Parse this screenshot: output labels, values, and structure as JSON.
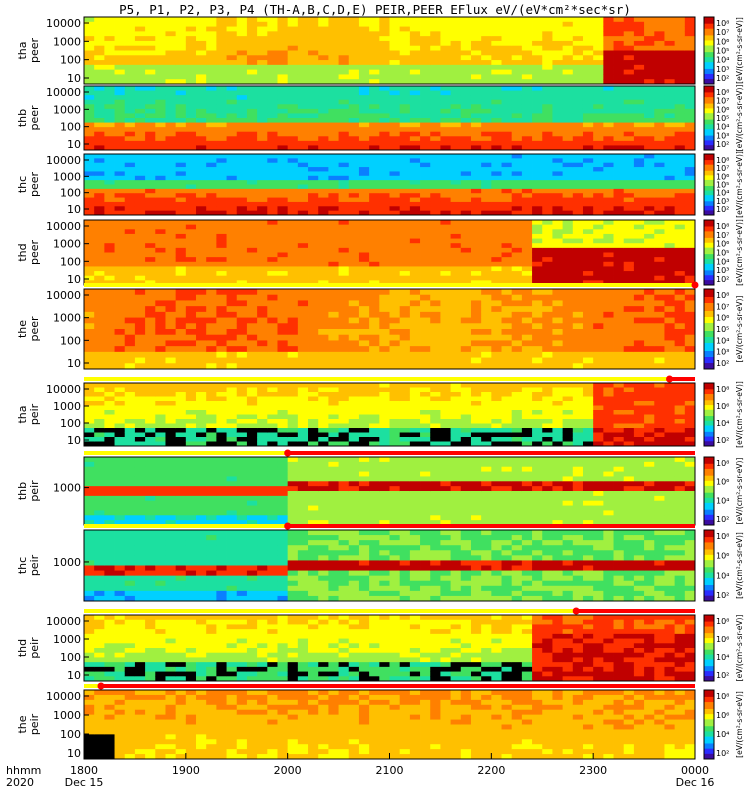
{
  "title": "P5, P1, P2, P3, P4 (TH-A,B,C,D,E) PEIR,PEER EFlux eV/(eV*cm²*sec*sr)",
  "time_label_row1": "hhmm",
  "time_label_row2": "2020",
  "colorbar_unit_label": "[eV/(cm²-s-sr-eV)]",
  "colorbar_ticks_full": [
    "10⁸",
    "10⁷",
    "10⁶",
    "10⁵",
    "10⁴",
    "10³",
    "10²"
  ],
  "colorbar_ticks_even": [
    "10⁸",
    "10⁶",
    "10⁴",
    "10²"
  ],
  "colors": {
    "background": "#ffffff",
    "quality_flag_bar": "#ff0000",
    "quality_flag_ok": "#ffff00"
  },
  "chart_data": {
    "type": "heatmap",
    "x_axis": {
      "ticks": [
        "1800",
        "1900",
        "2000",
        "2100",
        "2200",
        "2300",
        "0000"
      ],
      "date_labels": [
        "Dec 15",
        "",
        "",
        "",
        "",
        "",
        "Dec 16"
      ],
      "range": [
        "2020-12-15 18:00",
        "2020-12-16 00:00"
      ]
    },
    "z_scale": "log",
    "panels": [
      {
        "probe": "tha",
        "species": "peer",
        "ylabel": "tha\npeer",
        "yticks": [
          "10000",
          "1000",
          "100",
          "10"
        ],
        "colorbar": "full",
        "flag_start": null,
        "dominant": "green-orange, red after 2300"
      },
      {
        "probe": "thb",
        "species": "peer",
        "ylabel": "thb\npeer",
        "yticks": [
          "10000",
          "1000",
          "100",
          "10"
        ],
        "colorbar": "full",
        "flag_start": null,
        "dominant": "red-orange low, green high"
      },
      {
        "probe": "thc",
        "species": "peer",
        "ylabel": "thc\npeer",
        "yticks": [
          "10000",
          "1000",
          "100",
          "10"
        ],
        "colorbar": "full",
        "flag_start": null,
        "dominant": "red low, blue high"
      },
      {
        "probe": "thd",
        "species": "peer",
        "ylabel": "thd\npeer",
        "yticks": [
          "10000",
          "1000",
          "100",
          "10"
        ],
        "colorbar": "full",
        "flag_start": null,
        "dominant": "orange, red after 2235"
      },
      {
        "probe": "the",
        "species": "peer",
        "ylabel": "the\npeer",
        "yticks": [
          "10000",
          "1000",
          "100",
          "10"
        ],
        "colorbar": "full",
        "flag_start": "2020-12-16 00:00",
        "dominant": "orange-yellow"
      },
      {
        "probe": "tha",
        "species": "peir",
        "ylabel": "tha\npeir",
        "yticks": [
          "10000",
          "1000",
          "100",
          "10"
        ],
        "colorbar": "even",
        "flag_start": "2020-12-15 23:45",
        "dominant": "green-yellow, red after 2300"
      },
      {
        "probe": "thb",
        "species": "peir",
        "ylabel": "thb\npeir",
        "yticks": [
          "1000"
        ],
        "colorbar": "even",
        "flag_start": "2020-12-15 20:00",
        "dominant": "green with red band"
      },
      {
        "probe": "thc",
        "species": "peir",
        "ylabel": "thc\npeir",
        "yticks": [
          "1000"
        ],
        "colorbar": "even",
        "flag_start": "2020-12-15 20:00",
        "dominant": "green-blue with red band"
      },
      {
        "probe": "thd",
        "species": "peir",
        "ylabel": "thd\npeir",
        "yticks": [
          "10000",
          "1000",
          "100",
          "10"
        ],
        "colorbar": "even",
        "flag_start": "2020-12-15 22:50",
        "dominant": "green, red after 2235"
      },
      {
        "probe": "the",
        "species": "peir",
        "ylabel": "the\npeir",
        "yticks": [
          "10000",
          "1000",
          "100",
          "10"
        ],
        "colorbar": "even",
        "flag_start": "2020-12-15 18:10",
        "dominant": "yellow-green"
      }
    ]
  }
}
